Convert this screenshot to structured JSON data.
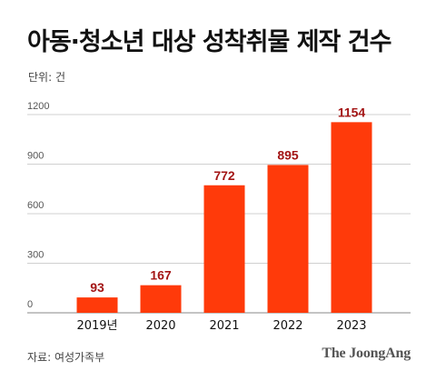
{
  "title": "아동·청소년 대상 성착취물 제작 건수",
  "unit_label": "단위: 건",
  "source": "자료: 여성가족부",
  "brand": "The JoongAng",
  "colors": {
    "bar": "#ff3a0a",
    "data_label": "#a31515",
    "grid": "#d0d0d0"
  },
  "chart_data": {
    "type": "bar",
    "categories": [
      "2019년",
      "2020",
      "2021",
      "2022",
      "2023"
    ],
    "values": [
      93,
      167,
      772,
      895,
      1154
    ],
    "yticks": [
      0,
      300,
      600,
      900,
      1200
    ],
    "ylim": [
      0,
      1200
    ],
    "grid": true,
    "legend": "none"
  }
}
